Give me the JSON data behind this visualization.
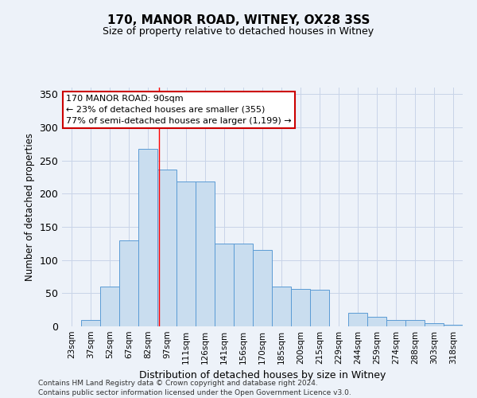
{
  "title": "170, MANOR ROAD, WITNEY, OX28 3SS",
  "subtitle": "Size of property relative to detached houses in Witney",
  "xlabel": "Distribution of detached houses by size in Witney",
  "ylabel": "Number of detached properties",
  "bar_labels": [
    "23sqm",
    "37sqm",
    "52sqm",
    "67sqm",
    "82sqm",
    "97sqm",
    "111sqm",
    "126sqm",
    "141sqm",
    "156sqm",
    "170sqm",
    "185sqm",
    "200sqm",
    "215sqm",
    "229sqm",
    "244sqm",
    "259sqm",
    "274sqm",
    "288sqm",
    "303sqm",
    "318sqm"
  ],
  "bar_values": [
    0,
    10,
    60,
    130,
    268,
    237,
    219,
    219,
    125,
    125,
    115,
    60,
    57,
    55,
    0,
    20,
    15,
    10,
    10,
    5,
    2
  ],
  "bar_color": "#c9ddef",
  "bar_edge_color": "#5b9bd5",
  "grid_color": "#c8d4e8",
  "background_color": "#edf2f9",
  "annotation_text": "170 MANOR ROAD: 90sqm\n← 23% of detached houses are smaller (355)\n77% of semi-detached houses are larger (1,199) →",
  "annotation_box_color": "#ffffff",
  "annotation_box_edge_color": "#cc0000",
  "red_line_x": 4.6,
  "ylim": [
    0,
    360
  ],
  "yticks": [
    0,
    50,
    100,
    150,
    200,
    250,
    300,
    350
  ],
  "footer_line1": "Contains HM Land Registry data © Crown copyright and database right 2024.",
  "footer_line2": "Contains public sector information licensed under the Open Government Licence v3.0."
}
